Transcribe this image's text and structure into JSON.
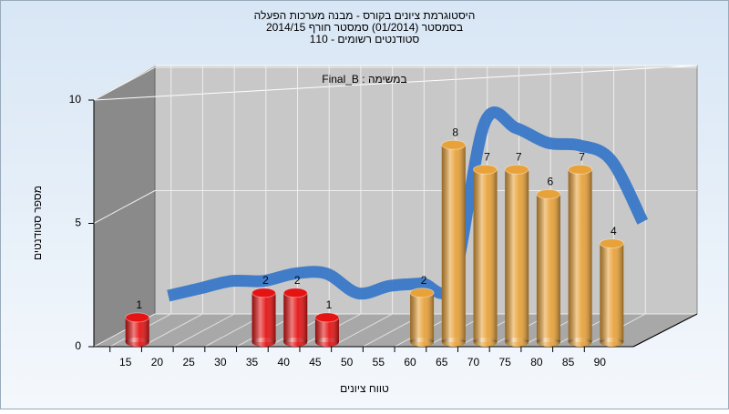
{
  "chart_data": {
    "type": "bar",
    "title_lines": [
      "היסטוגרמת ציונים בקורס - מבנה מערכות הפעלה",
      "בסמסטר  (01/2014)  סמסטר חורף 2014/15",
      "110 - סטודנטים רשומים"
    ],
    "annotation": "במשימה : Final_B",
    "xlabel": "טווח ציונים",
    "ylabel": "מספר סטודנטים",
    "xlim": [
      10,
      95
    ],
    "xticks": [
      15,
      20,
      25,
      30,
      35,
      40,
      45,
      50,
      55,
      60,
      65,
      70,
      75,
      80,
      85,
      90
    ],
    "ylim": [
      0,
      10
    ],
    "yticks": [
      0,
      5,
      10
    ],
    "grid": true,
    "series": [
      {
        "color": "#e41414",
        "x": [
          15,
          35,
          40,
          45
        ],
        "values": [
          1,
          2,
          2,
          1
        ]
      },
      {
        "color": "#e8a23a",
        "x": [
          60,
          65,
          70,
          75,
          80,
          85,
          90
        ],
        "values": [
          2,
          8,
          7,
          7,
          6,
          7,
          4
        ]
      }
    ],
    "curve": {
      "color": "#3a78c8",
      "x": [
        15,
        20,
        25,
        30,
        35,
        40,
        45,
        50,
        55,
        60,
        65,
        70,
        75,
        80,
        85,
        90
      ],
      "values": [
        1.4,
        1.7,
        2.0,
        2.0,
        2.3,
        2.3,
        1.5,
        1.8,
        1.9,
        2.0,
        8.4,
        8.2,
        7.6,
        7.5,
        6.9,
        4.4
      ]
    }
  }
}
